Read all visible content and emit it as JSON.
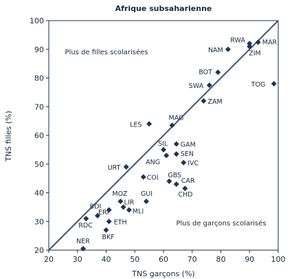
{
  "chart_data": {
    "type": "scatter",
    "title": "Afrique subsaharienne",
    "xlabel": "TNS garçons (%)",
    "ylabel": "TNS filles (%)",
    "xlim": [
      20,
      100
    ],
    "ylim": [
      20,
      100
    ],
    "xticks": [
      "20",
      "30",
      "40",
      "50",
      "60",
      "70",
      "80",
      "90",
      "100"
    ],
    "yticks": [
      "20",
      "30",
      "40",
      "50",
      "60",
      "70",
      "80",
      "90",
      "100"
    ],
    "grid": false,
    "reference_line": "y = x",
    "annotations": {
      "upper_left": "Plus de filles scolarisées",
      "lower_right": "Plus de garçons scolarisés"
    },
    "points": [
      {
        "label": "RWA",
        "x": 90,
        "y": 92
      },
      {
        "label": "MAR",
        "x": 93,
        "y": 92.5
      },
      {
        "label": "ZIM",
        "x": 90,
        "y": 91
      },
      {
        "label": "NAM",
        "x": 82.5,
        "y": 90
      },
      {
        "label": "BOT",
        "x": 79,
        "y": 82
      },
      {
        "label": "TOG",
        "x": 98.5,
        "y": 78
      },
      {
        "label": "SWA",
        "x": 76,
        "y": 77.5
      },
      {
        "label": "ZAM",
        "x": 74,
        "y": 72
      },
      {
        "label": "LES",
        "x": 55,
        "y": 64
      },
      {
        "label": "MAG",
        "x": 63,
        "y": 63.5
      },
      {
        "label": "SIL",
        "x": 60,
        "y": 55
      },
      {
        "label": "GAM",
        "x": 64.5,
        "y": 57
      },
      {
        "label": "SEN",
        "x": 64.5,
        "y": 53.5
      },
      {
        "label": "ANG",
        "x": 61,
        "y": 53
      },
      {
        "label": "IVC",
        "x": 67,
        "y": 50.5
      },
      {
        "label": "URT",
        "x": 47,
        "y": 49
      },
      {
        "label": "COI",
        "x": 53,
        "y": 45.5
      },
      {
        "label": "GBS",
        "x": 62,
        "y": 44
      },
      {
        "label": "CAR",
        "x": 64.5,
        "y": 43
      },
      {
        "label": "CHD",
        "x": 67.5,
        "y": 41.5
      },
      {
        "label": "GUI",
        "x": 54,
        "y": 37
      },
      {
        "label": "MOZ",
        "x": 45,
        "y": 37
      },
      {
        "label": "BDI",
        "x": 41,
        "y": 34
      },
      {
        "label": "LIR",
        "x": 46,
        "y": 35
      },
      {
        "label": "MLI",
        "x": 48,
        "y": 34
      },
      {
        "label": "ERI",
        "x": 37,
        "y": 32
      },
      {
        "label": "RDC",
        "x": 33,
        "y": 31
      },
      {
        "label": "ETH",
        "x": 41,
        "y": 30
      },
      {
        "label": "BKF",
        "x": 40,
        "y": 27
      },
      {
        "label": "NER",
        "x": 32,
        "y": 20.5
      }
    ],
    "marker_color": "#1f3550",
    "line_color": "#3c5470"
  }
}
